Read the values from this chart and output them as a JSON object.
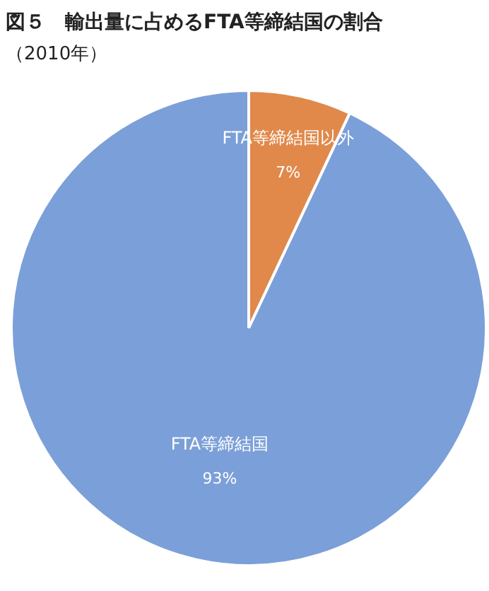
{
  "chart_data": {
    "type": "pie",
    "title": "図５　輸出量に占めるFTA等締結国の割合",
    "subtitle": "（2010年）",
    "categories": [
      "FTA等締結国以外",
      "FTA等締結国"
    ],
    "values": [
      7,
      93
    ],
    "colors": [
      "#e0894a",
      "#7b9fd8"
    ],
    "value_labels": [
      "7%",
      "93%"
    ]
  }
}
